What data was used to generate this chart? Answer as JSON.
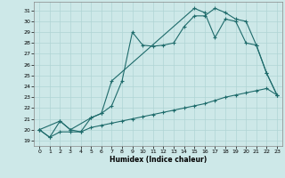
{
  "xlabel": "Humidex (Indice chaleur)",
  "bg_color": "#cde8e8",
  "line_color": "#1e6b6b",
  "grid_color": "#b0d4d4",
  "xlim": [
    -0.5,
    23.5
  ],
  "ylim": [
    18.5,
    31.8
  ],
  "xticks": [
    0,
    1,
    2,
    3,
    4,
    5,
    6,
    7,
    8,
    9,
    10,
    11,
    12,
    13,
    14,
    15,
    16,
    17,
    18,
    19,
    20,
    21,
    22,
    23
  ],
  "yticks": [
    19,
    20,
    21,
    22,
    23,
    24,
    25,
    26,
    27,
    28,
    29,
    30,
    31
  ],
  "curve1_x": [
    0,
    1,
    2,
    3,
    4,
    5,
    6,
    7,
    8,
    9,
    10,
    11,
    12,
    13,
    14,
    15,
    16,
    17,
    18,
    19,
    20,
    21,
    22,
    23
  ],
  "curve1_y": [
    20.0,
    19.3,
    20.8,
    20.0,
    19.8,
    21.1,
    21.5,
    22.2,
    24.5,
    29.0,
    27.8,
    27.7,
    27.8,
    28.0,
    29.5,
    30.5,
    30.5,
    31.2,
    30.8,
    30.2,
    30.0,
    27.8,
    25.2,
    23.2
  ],
  "curve2_x": [
    0,
    2,
    3,
    5,
    6,
    7,
    15,
    16,
    17,
    18,
    19,
    20,
    21,
    22,
    23
  ],
  "curve2_y": [
    20.0,
    20.8,
    20.0,
    21.1,
    21.5,
    24.5,
    31.2,
    30.8,
    28.5,
    30.2,
    30.0,
    28.0,
    27.8,
    25.2,
    23.2
  ],
  "curve3_x": [
    0,
    1,
    2,
    3,
    4,
    5,
    6,
    7,
    8,
    9,
    10,
    11,
    12,
    13,
    14,
    15,
    16,
    17,
    18,
    19,
    20,
    21,
    22,
    23
  ],
  "curve3_y": [
    20.0,
    19.3,
    19.8,
    19.8,
    19.8,
    20.2,
    20.4,
    20.6,
    20.8,
    21.0,
    21.2,
    21.4,
    21.6,
    21.8,
    22.0,
    22.2,
    22.4,
    22.7,
    23.0,
    23.2,
    23.4,
    23.6,
    23.8,
    23.2
  ]
}
